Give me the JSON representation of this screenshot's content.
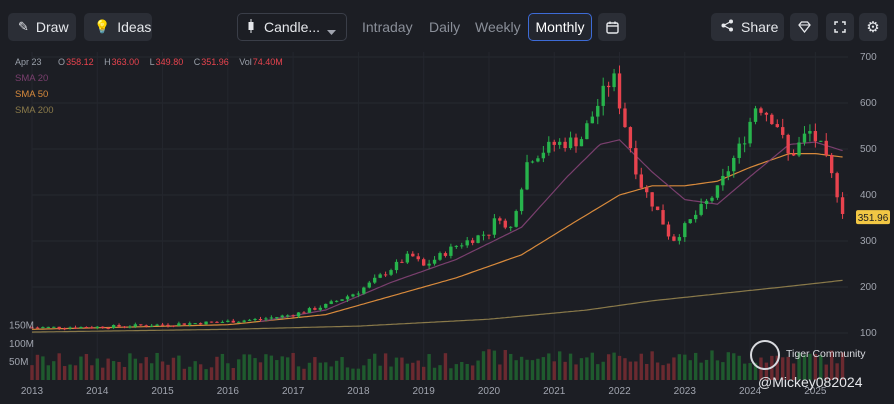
{
  "toolbar": {
    "draw_label": "Draw",
    "ideas_label": "Ideas",
    "chart_type_label": "Candle...",
    "timeframes": [
      "Intraday",
      "Daily",
      "Weekly",
      "Monthly"
    ],
    "active_timeframe": "Monthly",
    "share_label": "Share"
  },
  "ohlc_bar": {
    "date": "Apr 23",
    "open_key": "O",
    "open": "358.12",
    "high_key": "H",
    "high": "363.00",
    "low_key": "L",
    "low": "349.80",
    "close_key": "C",
    "close": "351.96",
    "vol_key": "Vol",
    "vol": "74.40M"
  },
  "indicators": [
    {
      "label": "SMA 20",
      "color": "#7a3f6e"
    },
    {
      "label": "SMA 50",
      "color": "#d88a3c"
    },
    {
      "label": "SMA 200",
      "color": "#8a7a4a"
    }
  ],
  "watermark": {
    "brand": "Tiger Community",
    "user": "@Mickey082024"
  },
  "chart_data": {
    "type": "candlestick",
    "price_axis": {
      "ticks": [
        100,
        200,
        300,
        400,
        500,
        600,
        700
      ],
      "range": [
        100,
        700
      ]
    },
    "volume_axis": {
      "ticks": [
        "150M",
        "100M",
        "50M"
      ],
      "values": [
        150,
        100,
        50
      ],
      "range": [
        0,
        160
      ]
    },
    "x_axis": {
      "labels": [
        "2013",
        "2014",
        "2015",
        "2016",
        "2017",
        "2018",
        "2019",
        "2020",
        "2021",
        "2022",
        "2023",
        "2024",
        "2025"
      ],
      "start": 2013.0,
      "end": 2025.5
    },
    "last_price_label": "351.96",
    "candles_yearly_anchors": [
      {
        "x": 2013.0,
        "p": 112
      },
      {
        "x": 2014.0,
        "p": 113
      },
      {
        "x": 2015.0,
        "p": 118
      },
      {
        "x": 2016.0,
        "p": 125
      },
      {
        "x": 2016.5,
        "p": 130
      },
      {
        "x": 2017.0,
        "p": 140
      },
      {
        "x": 2017.5,
        "p": 160
      },
      {
        "x": 2018.0,
        "p": 190
      },
      {
        "x": 2018.4,
        "p": 230
      },
      {
        "x": 2018.8,
        "p": 270
      },
      {
        "x": 2019.0,
        "p": 245
      },
      {
        "x": 2019.5,
        "p": 290
      },
      {
        "x": 2020.0,
        "p": 320
      },
      {
        "x": 2020.15,
        "p": 360
      },
      {
        "x": 2020.3,
        "p": 310
      },
      {
        "x": 2020.6,
        "p": 480
      },
      {
        "x": 2021.0,
        "p": 510
      },
      {
        "x": 2021.4,
        "p": 520
      },
      {
        "x": 2021.75,
        "p": 620
      },
      {
        "x": 2021.9,
        "p": 660
      },
      {
        "x": 2022.0,
        "p": 600
      },
      {
        "x": 2022.3,
        "p": 430
      },
      {
        "x": 2022.6,
        "p": 360
      },
      {
        "x": 2022.8,
        "p": 300
      },
      {
        "x": 2023.0,
        "p": 330
      },
      {
        "x": 2023.5,
        "p": 410
      },
      {
        "x": 2023.9,
        "p": 520
      },
      {
        "x": 2024.1,
        "p": 600
      },
      {
        "x": 2024.4,
        "p": 560
      },
      {
        "x": 2024.6,
        "p": 480
      },
      {
        "x": 2024.9,
        "p": 540
      },
      {
        "x": 2025.1,
        "p": 500
      },
      {
        "x": 2025.3,
        "p": 420
      },
      {
        "x": 2025.45,
        "p": 352
      }
    ],
    "sma20_anchors": [
      {
        "x": 2016.5,
        "p": 125
      },
      {
        "x": 2017.5,
        "p": 150
      },
      {
        "x": 2018.5,
        "p": 210
      },
      {
        "x": 2019.5,
        "p": 260
      },
      {
        "x": 2020.5,
        "p": 330
      },
      {
        "x": 2021.2,
        "p": 440
      },
      {
        "x": 2021.7,
        "p": 510
      },
      {
        "x": 2022.0,
        "p": 520
      },
      {
        "x": 2022.5,
        "p": 450
      },
      {
        "x": 2023.0,
        "p": 390
      },
      {
        "x": 2023.5,
        "p": 380
      },
      {
        "x": 2024.0,
        "p": 440
      },
      {
        "x": 2024.6,
        "p": 510
      },
      {
        "x": 2025.0,
        "p": 515
      },
      {
        "x": 2025.45,
        "p": 495
      }
    ],
    "sma50_anchors": [
      {
        "x": 2013.0,
        "p": 108
      },
      {
        "x": 2016.0,
        "p": 118
      },
      {
        "x": 2017.5,
        "p": 140
      },
      {
        "x": 2018.5,
        "p": 180
      },
      {
        "x": 2019.5,
        "p": 220
      },
      {
        "x": 2020.5,
        "p": 270
      },
      {
        "x": 2021.3,
        "p": 340
      },
      {
        "x": 2022.0,
        "p": 400
      },
      {
        "x": 2022.5,
        "p": 420
      },
      {
        "x": 2023.0,
        "p": 420
      },
      {
        "x": 2023.5,
        "p": 430
      },
      {
        "x": 2024.0,
        "p": 460
      },
      {
        "x": 2024.6,
        "p": 490
      },
      {
        "x": 2025.0,
        "p": 490
      },
      {
        "x": 2025.45,
        "p": 482
      }
    ],
    "sma200_anchors": [
      {
        "x": 2013.0,
        "p": 102
      },
      {
        "x": 2016.0,
        "p": 108
      },
      {
        "x": 2018.0,
        "p": 115
      },
      {
        "x": 2020.0,
        "p": 130
      },
      {
        "x": 2021.5,
        "p": 150
      },
      {
        "x": 2022.5,
        "p": 170
      },
      {
        "x": 2023.5,
        "p": 185
      },
      {
        "x": 2024.5,
        "p": 200
      },
      {
        "x": 2025.45,
        "p": 215
      }
    ]
  }
}
